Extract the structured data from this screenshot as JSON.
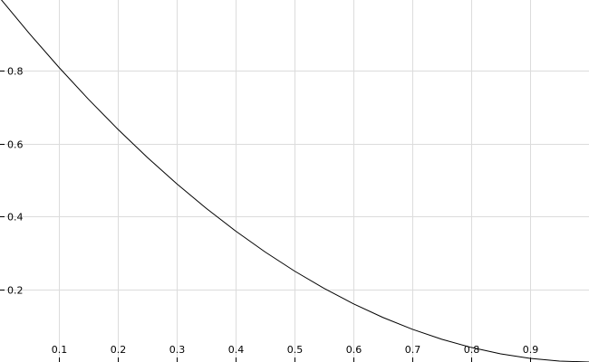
{
  "chart_data": {
    "type": "line",
    "title": "",
    "xlabel": "",
    "ylabel": "",
    "xlim": [
      0,
      1
    ],
    "ylim": [
      0,
      1
    ],
    "grid": true,
    "x_ticks": [
      0.1,
      0.2,
      0.3,
      0.4,
      0.5,
      0.6,
      0.7,
      0.8,
      0.9
    ],
    "y_ticks": [
      0.2,
      0.4,
      0.6,
      0.8
    ],
    "x_tick_labels": [
      "0.1",
      "0.2",
      "0.3",
      "0.4",
      "0.5",
      "0.6",
      "0.7",
      "0.8",
      "0.9"
    ],
    "y_tick_labels": [
      "0.2",
      "0.4",
      "0.6",
      "0.8"
    ],
    "series": [
      {
        "color": "#000000",
        "x": [
          0,
          0.05,
          0.1,
          0.15,
          0.2,
          0.25,
          0.3,
          0.35,
          0.4,
          0.45,
          0.5,
          0.55,
          0.6,
          0.65,
          0.7,
          0.75,
          0.8,
          0.85,
          0.9,
          0.95,
          1.0
        ],
        "y": [
          1.0,
          0.9025,
          0.81,
          0.7225,
          0.64,
          0.5625,
          0.49,
          0.4225,
          0.36,
          0.3025,
          0.25,
          0.2025,
          0.16,
          0.1225,
          0.09,
          0.0625,
          0.04,
          0.0225,
          0.01,
          0.0025,
          0.0
        ]
      }
    ]
  }
}
